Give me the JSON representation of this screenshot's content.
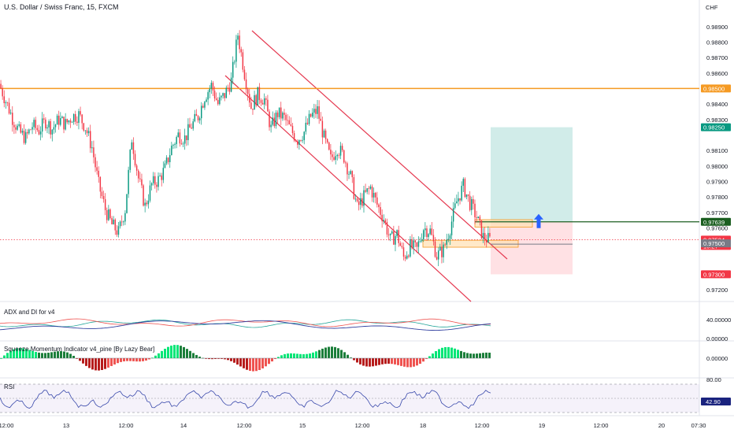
{
  "chart_data": {
    "type": "candlestick",
    "title": "U.S. Dollar / Swiss Franc, 15, FXCM",
    "currency_label": "CHF",
    "price_ticks": [
      "0.98900",
      "0.98800",
      "0.98700",
      "0.98600",
      "0.98400",
      "0.98300",
      "0.98100",
      "0.98000",
      "0.97900",
      "0.97800",
      "0.97700",
      "0.97600",
      "0.97200"
    ],
    "ylim": [
      0.9717,
      0.9897
    ],
    "time_labels": [
      "12:00",
      "13",
      "12:00",
      "14",
      "12:00",
      "15",
      "12:00",
      "18",
      "12:00",
      "19",
      "12:00",
      "20",
      "07:30"
    ],
    "price_path": [
      0.9853,
      0.9842,
      0.9831,
      0.9822,
      0.9818,
      0.9826,
      0.9823,
      0.9829,
      0.9824,
      0.983,
      0.9827,
      0.9832,
      0.9833,
      0.9825,
      0.9812,
      0.9788,
      0.9772,
      0.9762,
      0.9757,
      0.9772,
      0.9818,
      0.9792,
      0.9774,
      0.9788,
      0.9791,
      0.9798,
      0.9812,
      0.982,
      0.9818,
      0.9826,
      0.9832,
      0.9845,
      0.9852,
      0.984,
      0.9846,
      0.9855,
      0.9885,
      0.986,
      0.9838,
      0.9846,
      0.9843,
      0.9824,
      0.9834,
      0.9831,
      0.9823,
      0.9817,
      0.9822,
      0.9832,
      0.9836,
      0.9818,
      0.9804,
      0.9812,
      0.9806,
      0.9793,
      0.9773,
      0.978,
      0.9786,
      0.9775,
      0.9766,
      0.9752,
      0.9756,
      0.9741,
      0.9748,
      0.9746,
      0.976,
      0.9758,
      0.9742,
      0.9746,
      0.976,
      0.9777,
      0.9787,
      0.9776,
      0.9767,
      0.9754,
      0.9752
    ],
    "levels": {
      "resistance": {
        "value": "0.98500",
        "color": "#f59a23"
      },
      "take_profit": {
        "value": "0.98250",
        "color": "#089981"
      },
      "entry": {
        "value": "0.97639",
        "color": "#1b5e20"
      },
      "current": {
        "value": "0.97524",
        "countdown": "10:27",
        "color": "#f23645"
      },
      "support": {
        "value": "0.97500",
        "color": "#787b86"
      },
      "stop_loss": {
        "value": "0.97300",
        "color": "#f23645"
      }
    },
    "panes": [
      {
        "title": "ADX and DI for v4",
        "ticks": [
          "40.00000",
          "0.00000"
        ]
      },
      {
        "title": "Squeeze Momentum Indicator v4_pine [By Lazy Bear]",
        "ticks": [
          "0.00000"
        ]
      },
      {
        "title": "RSI",
        "ticks": [
          "80.00",
          "42.90"
        ],
        "current": "42.90"
      }
    ],
    "grid": false,
    "legend": "none"
  }
}
